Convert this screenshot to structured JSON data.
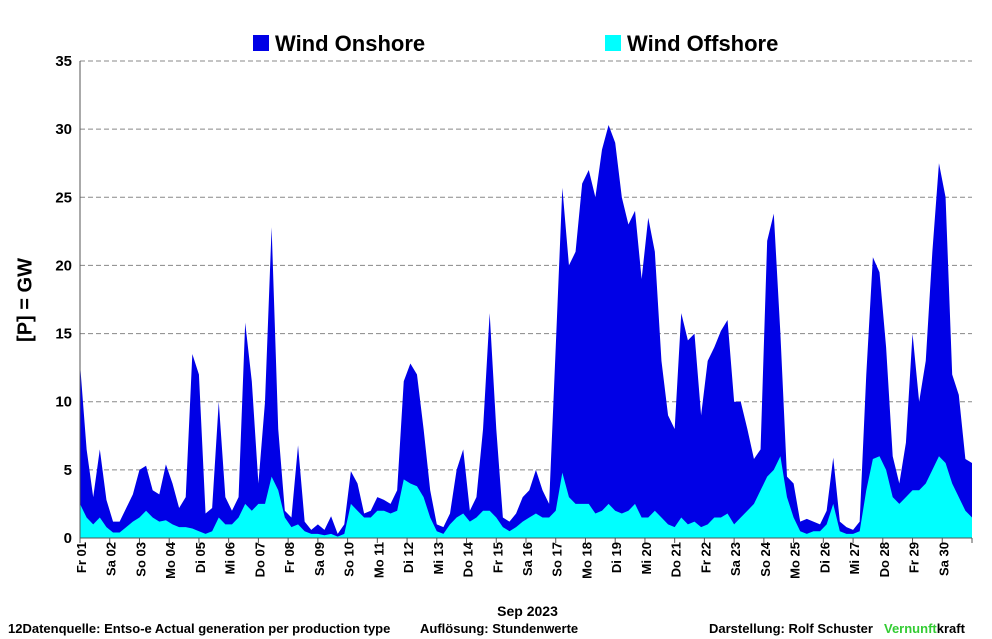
{
  "chart_data": {
    "type": "area",
    "stacked": true,
    "ylabel": "[P]  = GW",
    "ylim": [
      0,
      35
    ],
    "yticks": [
      0,
      5,
      10,
      15,
      20,
      25,
      30,
      35
    ],
    "grid": "horizontal dashed",
    "legend_position": "top",
    "xlabel": "Sep 2023",
    "categories": [
      "Fr 01",
      "Sa 02",
      "So 03",
      "Mo 04",
      "Di 05",
      "Mi 06",
      "Do 07",
      "Fr 08",
      "Sa 09",
      "So 10",
      "Mo 11",
      "Di 12",
      "Mi 13",
      "Do 14",
      "Fr 15",
      "Sa 16",
      "So 17",
      "Mo 18",
      "Di 19",
      "Mi 20",
      "Do 21",
      "Fr 22",
      "Sa 23",
      "So 24",
      "Mo 25",
      "Di 26",
      "Mi 27",
      "Do 28",
      "Fr 29",
      "Sa 30"
    ],
    "series": [
      {
        "name": "Wind Onshore",
        "color": "#0000e6",
        "description": "total height = onshore + offshore",
        "total_values_per_6h": [
          12.8,
          6.5,
          3.0,
          6.5,
          2.8,
          1.2,
          1.2,
          2.2,
          3.2,
          5.0,
          5.3,
          3.5,
          3.2,
          5.4,
          4.0,
          2.2,
          3.0,
          13.5,
          12.0,
          1.8,
          2.2,
          10.0,
          3.0,
          2.0,
          3.0,
          15.8,
          11.5,
          4.0,
          10.0,
          22.8,
          8.0,
          2.0,
          1.5,
          6.8,
          1.2,
          0.6,
          1.0,
          0.6,
          1.6,
          0.3,
          1.0,
          4.9,
          4.0,
          1.8,
          2.0,
          3.0,
          2.8,
          2.5,
          3.5,
          11.5,
          12.8,
          12.0,
          8.0,
          3.5,
          1.0,
          0.8,
          1.8,
          5.0,
          6.5,
          2.0,
          3.0,
          8.0,
          16.5,
          8.0,
          1.5,
          1.2,
          1.8,
          3.0,
          3.5,
          5.0,
          3.5,
          2.5,
          14.0,
          25.7,
          20.0,
          21.0,
          26.0,
          27.0,
          25.0,
          28.5,
          30.3,
          29.0,
          25.0,
          23.0,
          24.0,
          19.0,
          23.5,
          21.0,
          13.0,
          9.0,
          8.0,
          16.5,
          14.5,
          15.0,
          9.0,
          13.0,
          14.0,
          15.2,
          16.0,
          10.0,
          10.0,
          8.0,
          5.8,
          6.5,
          21.8,
          23.8,
          15.0,
          4.5,
          4.0,
          1.2,
          1.4,
          1.2,
          1.0,
          2.0,
          5.9,
          1.2,
          0.8,
          0.6,
          1.2,
          12.0,
          20.6,
          19.5,
          14.0,
          6.0,
          4.0,
          7.0,
          15.0,
          10.0,
          13.0,
          21.0,
          27.5,
          25.0,
          12.0,
          10.5,
          5.8,
          5.5
        ]
      },
      {
        "name": "Wind Offshore",
        "color": "#00ffff",
        "values_per_6h": [
          2.5,
          1.5,
          1.0,
          1.5,
          0.8,
          0.4,
          0.4,
          0.8,
          1.2,
          1.5,
          2.0,
          1.5,
          1.2,
          1.3,
          1.0,
          0.8,
          0.8,
          0.7,
          0.5,
          0.3,
          0.5,
          1.5,
          1.0,
          1.0,
          1.5,
          2.5,
          2.0,
          2.5,
          2.5,
          4.5,
          3.5,
          1.5,
          0.8,
          1.0,
          0.5,
          0.3,
          0.3,
          0.2,
          0.3,
          0.1,
          0.3,
          2.5,
          2.0,
          1.5,
          1.5,
          2.0,
          2.0,
          1.8,
          2.0,
          4.3,
          4.0,
          3.8,
          3.0,
          1.5,
          0.5,
          0.3,
          1.0,
          1.5,
          1.8,
          1.2,
          1.5,
          2.0,
          2.0,
          1.5,
          0.8,
          0.5,
          0.8,
          1.2,
          1.5,
          1.8,
          1.5,
          1.5,
          2.0,
          4.8,
          3.0,
          2.5,
          2.5,
          2.5,
          1.8,
          2.0,
          2.5,
          2.0,
          1.8,
          2.0,
          2.5,
          1.5,
          1.5,
          2.0,
          1.5,
          1.0,
          0.8,
          1.5,
          1.0,
          1.2,
          0.8,
          1.0,
          1.5,
          1.5,
          1.8,
          1.0,
          1.5,
          2.0,
          2.5,
          3.5,
          4.5,
          5.0,
          6.0,
          3.0,
          1.5,
          0.5,
          0.3,
          0.5,
          0.5,
          1.0,
          2.5,
          0.5,
          0.3,
          0.3,
          0.5,
          3.5,
          5.8,
          6.0,
          5.0,
          3.0,
          2.5,
          3.0,
          3.5,
          3.5,
          4.0,
          5.0,
          6.0,
          5.5,
          4.0,
          3.0,
          2.0,
          1.5
        ]
      }
    ]
  },
  "legend": {
    "onshore_label": "Wind Onshore",
    "offshore_label": "Wind Offshore"
  },
  "footer": {
    "source": "12Datenquelle: Entso-e  Actual generation per production type",
    "resolution": "Auflösung: Stundenwerte",
    "author": "Darstellung:  Rolf Schuster",
    "brand_green": "Vernunft",
    "brand_black": "kraft"
  }
}
